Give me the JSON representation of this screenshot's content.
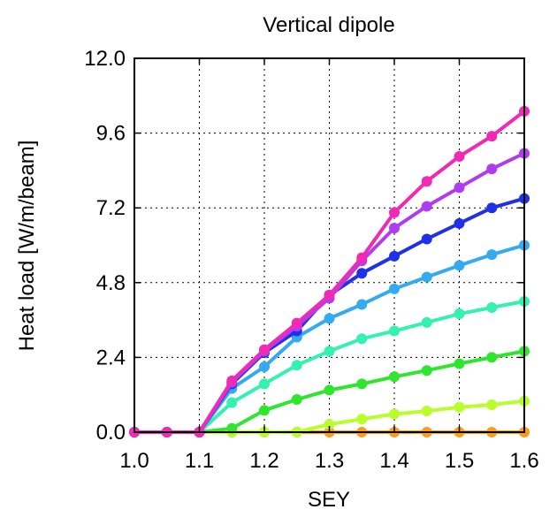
{
  "chart_data": {
    "type": "line",
    "title": "Vertical dipole",
    "xlabel": "SEY",
    "ylabel": "Heat load [W/m/beam]",
    "xlim": [
      1.0,
      1.6
    ],
    "ylim": [
      0.0,
      12.0
    ],
    "xticks": [
      1.0,
      1.1,
      1.2,
      1.3,
      1.4,
      1.5,
      1.6
    ],
    "xtick_labels": [
      "1.0",
      "1.1",
      "1.2",
      "1.3",
      "1.4",
      "1.5",
      "1.6"
    ],
    "yticks": [
      0.0,
      2.4,
      4.8,
      7.2,
      9.6,
      12.0
    ],
    "ytick_labels": [
      "0.0",
      "2.4",
      "4.8",
      "7.2",
      "9.6",
      "12.0"
    ],
    "grid": true,
    "grid_style": "dotted",
    "x": [
      1.0,
      1.05,
      1.1,
      1.15,
      1.2,
      1.25,
      1.3,
      1.35,
      1.4,
      1.45,
      1.5,
      1.55,
      1.6
    ],
    "series": [
      {
        "color": "#ff9a1a",
        "values": [
          0,
          0,
          0,
          0,
          0,
          0,
          0,
          0,
          0,
          0,
          0,
          0,
          0
        ]
      },
      {
        "color": "#b8ff2a",
        "values": [
          0,
          0,
          0,
          0,
          0,
          0,
          0.25,
          0.42,
          0.58,
          0.68,
          0.8,
          0.88,
          1.0
        ]
      },
      {
        "color": "#2ee62e",
        "values": [
          0,
          0,
          0,
          0.12,
          0.7,
          1.05,
          1.35,
          1.55,
          1.78,
          1.98,
          2.2,
          2.4,
          2.6
        ]
      },
      {
        "color": "#33f2b0",
        "values": [
          0,
          0,
          0,
          0.95,
          1.55,
          2.15,
          2.6,
          3.0,
          3.25,
          3.52,
          3.8,
          4.0,
          4.2
        ]
      },
      {
        "color": "#33aaf2",
        "values": [
          0,
          0,
          0,
          1.4,
          2.1,
          3.05,
          3.65,
          4.1,
          4.6,
          4.98,
          5.35,
          5.7,
          6.0
        ]
      },
      {
        "color": "#2030e8",
        "values": [
          0,
          0,
          0,
          1.55,
          2.55,
          3.25,
          4.4,
          5.1,
          5.65,
          6.2,
          6.7,
          7.2,
          7.5
        ]
      },
      {
        "color": "#b03cf0",
        "values": [
          0,
          0,
          0,
          1.6,
          2.6,
          3.4,
          4.3,
          5.5,
          6.55,
          7.25,
          7.85,
          8.45,
          8.95
        ]
      },
      {
        "color": "#f02ab4",
        "values": [
          0,
          0,
          0,
          1.65,
          2.65,
          3.5,
          4.4,
          5.6,
          7.05,
          8.05,
          8.85,
          9.5,
          10.3
        ]
      }
    ]
  }
}
